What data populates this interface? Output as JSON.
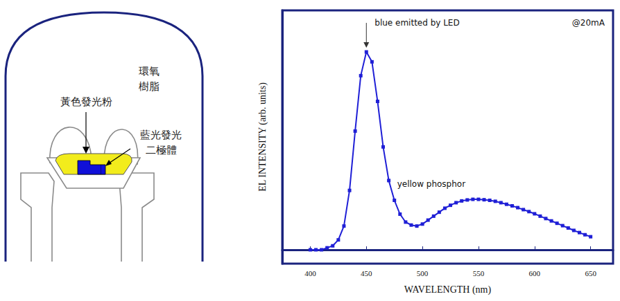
{
  "diagram": {
    "labels": {
      "epoxy": "環氧樹脂",
      "phosphor": "黃色發光粉",
      "chip": "藍光發光二極體"
    }
  },
  "chart_data": {
    "type": "line",
    "marker": "square",
    "color": "#1f1fd6",
    "x": [
      400,
      405,
      410,
      415,
      420,
      425,
      430,
      435,
      440,
      445,
      450,
      455,
      460,
      465,
      470,
      475,
      480,
      485,
      490,
      495,
      500,
      505,
      510,
      515,
      520,
      525,
      530,
      535,
      540,
      545,
      550,
      555,
      560,
      565,
      570,
      575,
      580,
      585,
      590,
      595,
      600,
      605,
      610,
      615,
      620,
      625,
      630,
      635,
      640,
      645,
      650
    ],
    "values": [
      0.0,
      0.0,
      0.0,
      0.01,
      0.02,
      0.05,
      0.12,
      0.3,
      0.6,
      0.88,
      1.0,
      0.95,
      0.75,
      0.52,
      0.35,
      0.25,
      0.18,
      0.14,
      0.125,
      0.12,
      0.13,
      0.15,
      0.17,
      0.19,
      0.21,
      0.225,
      0.238,
      0.247,
      0.252,
      0.255,
      0.255,
      0.253,
      0.25,
      0.245,
      0.238,
      0.23,
      0.222,
      0.213,
      0.203,
      0.193,
      0.182,
      0.17,
      0.158,
      0.146,
      0.134,
      0.122,
      0.11,
      0.098,
      0.087,
      0.076,
      0.066
    ],
    "xlim": [
      375,
      670
    ],
    "xticks": [
      400,
      450,
      500,
      550,
      600,
      650
    ],
    "ylim": [
      -0.07,
      1.21
    ],
    "tick_labels": "x",
    "grid": false,
    "x_label": "WAVELENGTH (nm)",
    "y_label": "EL INTENSITY (arb. units)",
    "annotations": [
      "blue emitted by LED",
      "yellow phosphor",
      "@20mA"
    ]
  }
}
